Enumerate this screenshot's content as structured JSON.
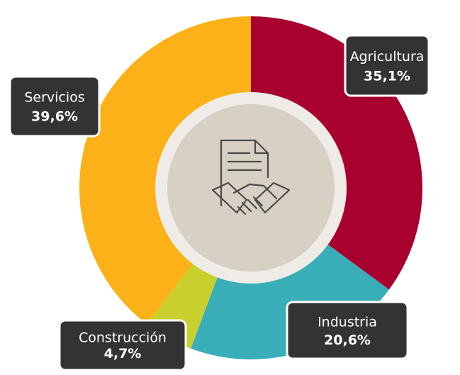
{
  "chart_data": {
    "type": "pie",
    "categories": [
      "Agricultura",
      "Industria",
      "Construcción",
      "Servicios"
    ],
    "values": [
      35.1,
      20.6,
      4.7,
      39.6
    ],
    "value_labels": [
      "35,1%",
      "20,6%",
      "4,7%",
      "39,6%"
    ],
    "colors": [
      "#a8002f",
      "#3aaeb8",
      "#c9cf2c",
      "#fbb117"
    ],
    "donut": true
  }
}
